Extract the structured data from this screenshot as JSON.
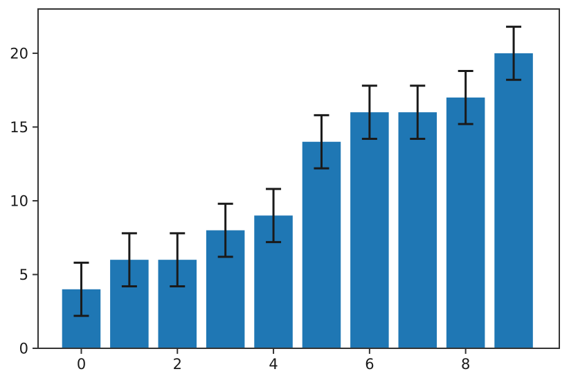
{
  "chart_data": {
    "type": "bar",
    "title": "",
    "xlabel": "",
    "ylabel": "",
    "x": [
      0,
      1,
      2,
      3,
      4,
      5,
      6,
      7,
      8,
      9
    ],
    "values": [
      4,
      6,
      6,
      8,
      9,
      14,
      16,
      16,
      17,
      20
    ],
    "yerr": [
      1.8,
      1.8,
      1.8,
      1.8,
      1.8,
      1.8,
      1.8,
      1.8,
      1.8,
      1.8
    ],
    "xticks": [
      0,
      2,
      4,
      6,
      8
    ],
    "yticks": [
      0,
      5,
      10,
      15,
      20
    ],
    "xlim": [
      -0.9,
      9.95
    ],
    "ylim": [
      0,
      23
    ],
    "bar_width": 0.8,
    "bar_color": "#1f77b4",
    "error_color": "#1a1a1a",
    "axis_color": "#333333",
    "tick_label_color": "#1a1a1a",
    "grid": false,
    "legend": null
  }
}
